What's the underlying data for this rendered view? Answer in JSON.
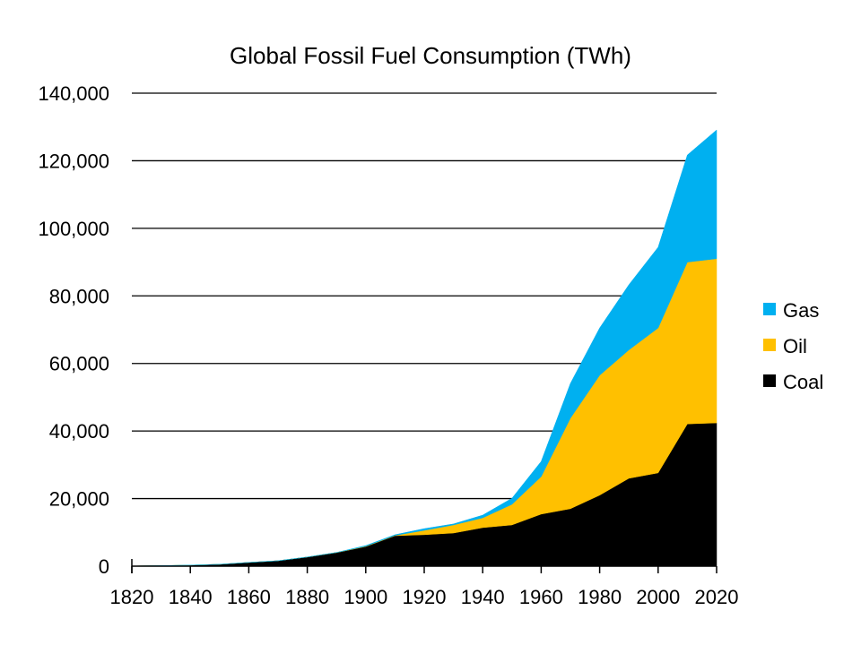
{
  "chart_data": {
    "type": "area",
    "stacked": true,
    "title": "Global Fossil Fuel Consumption (TWh)",
    "xlabel": "",
    "ylabel": "",
    "x": [
      1820,
      1830,
      1840,
      1850,
      1860,
      1870,
      1880,
      1890,
      1900,
      1910,
      1920,
      1930,
      1940,
      1950,
      1960,
      1970,
      1980,
      1990,
      2000,
      2010,
      2020
    ],
    "xlim": [
      1820,
      2020
    ],
    "ylim": [
      0,
      140000
    ],
    "xticks": [
      "1820",
      "1840",
      "1860",
      "1880",
      "1900",
      "1920",
      "1940",
      "1960",
      "1980",
      "2000",
      "2020"
    ],
    "yticks": [
      "0",
      "20,000",
      "40,000",
      "60,000",
      "80,000",
      "100,000",
      "120,000",
      "140,000"
    ],
    "grid": "horizontal",
    "legend_position": "right",
    "series": [
      {
        "name": "Coal",
        "color": "#000000",
        "values": [
          50,
          150,
          300,
          550,
          1100,
          1600,
          2700,
          4000,
          5800,
          9000,
          9300,
          9800,
          11400,
          12200,
          15400,
          17000,
          21000,
          26000,
          27600,
          42100,
          42400
        ]
      },
      {
        "name": "Oil",
        "color": "#FFC000",
        "values": [
          0,
          0,
          0,
          0,
          0,
          0,
          0,
          50,
          100,
          100,
          1300,
          2400,
          2900,
          6100,
          11100,
          26800,
          35500,
          38000,
          42900,
          47900,
          48600
        ]
      },
      {
        "name": "Gas",
        "color": "#00B0F0",
        "values": [
          0,
          0,
          0,
          0,
          0,
          0,
          0,
          0,
          200,
          200,
          500,
          300,
          800,
          1800,
          4500,
          10300,
          14000,
          19300,
          23900,
          31700,
          38100
        ]
      }
    ],
    "legend": [
      "Gas",
      "Oil",
      "Coal"
    ]
  }
}
